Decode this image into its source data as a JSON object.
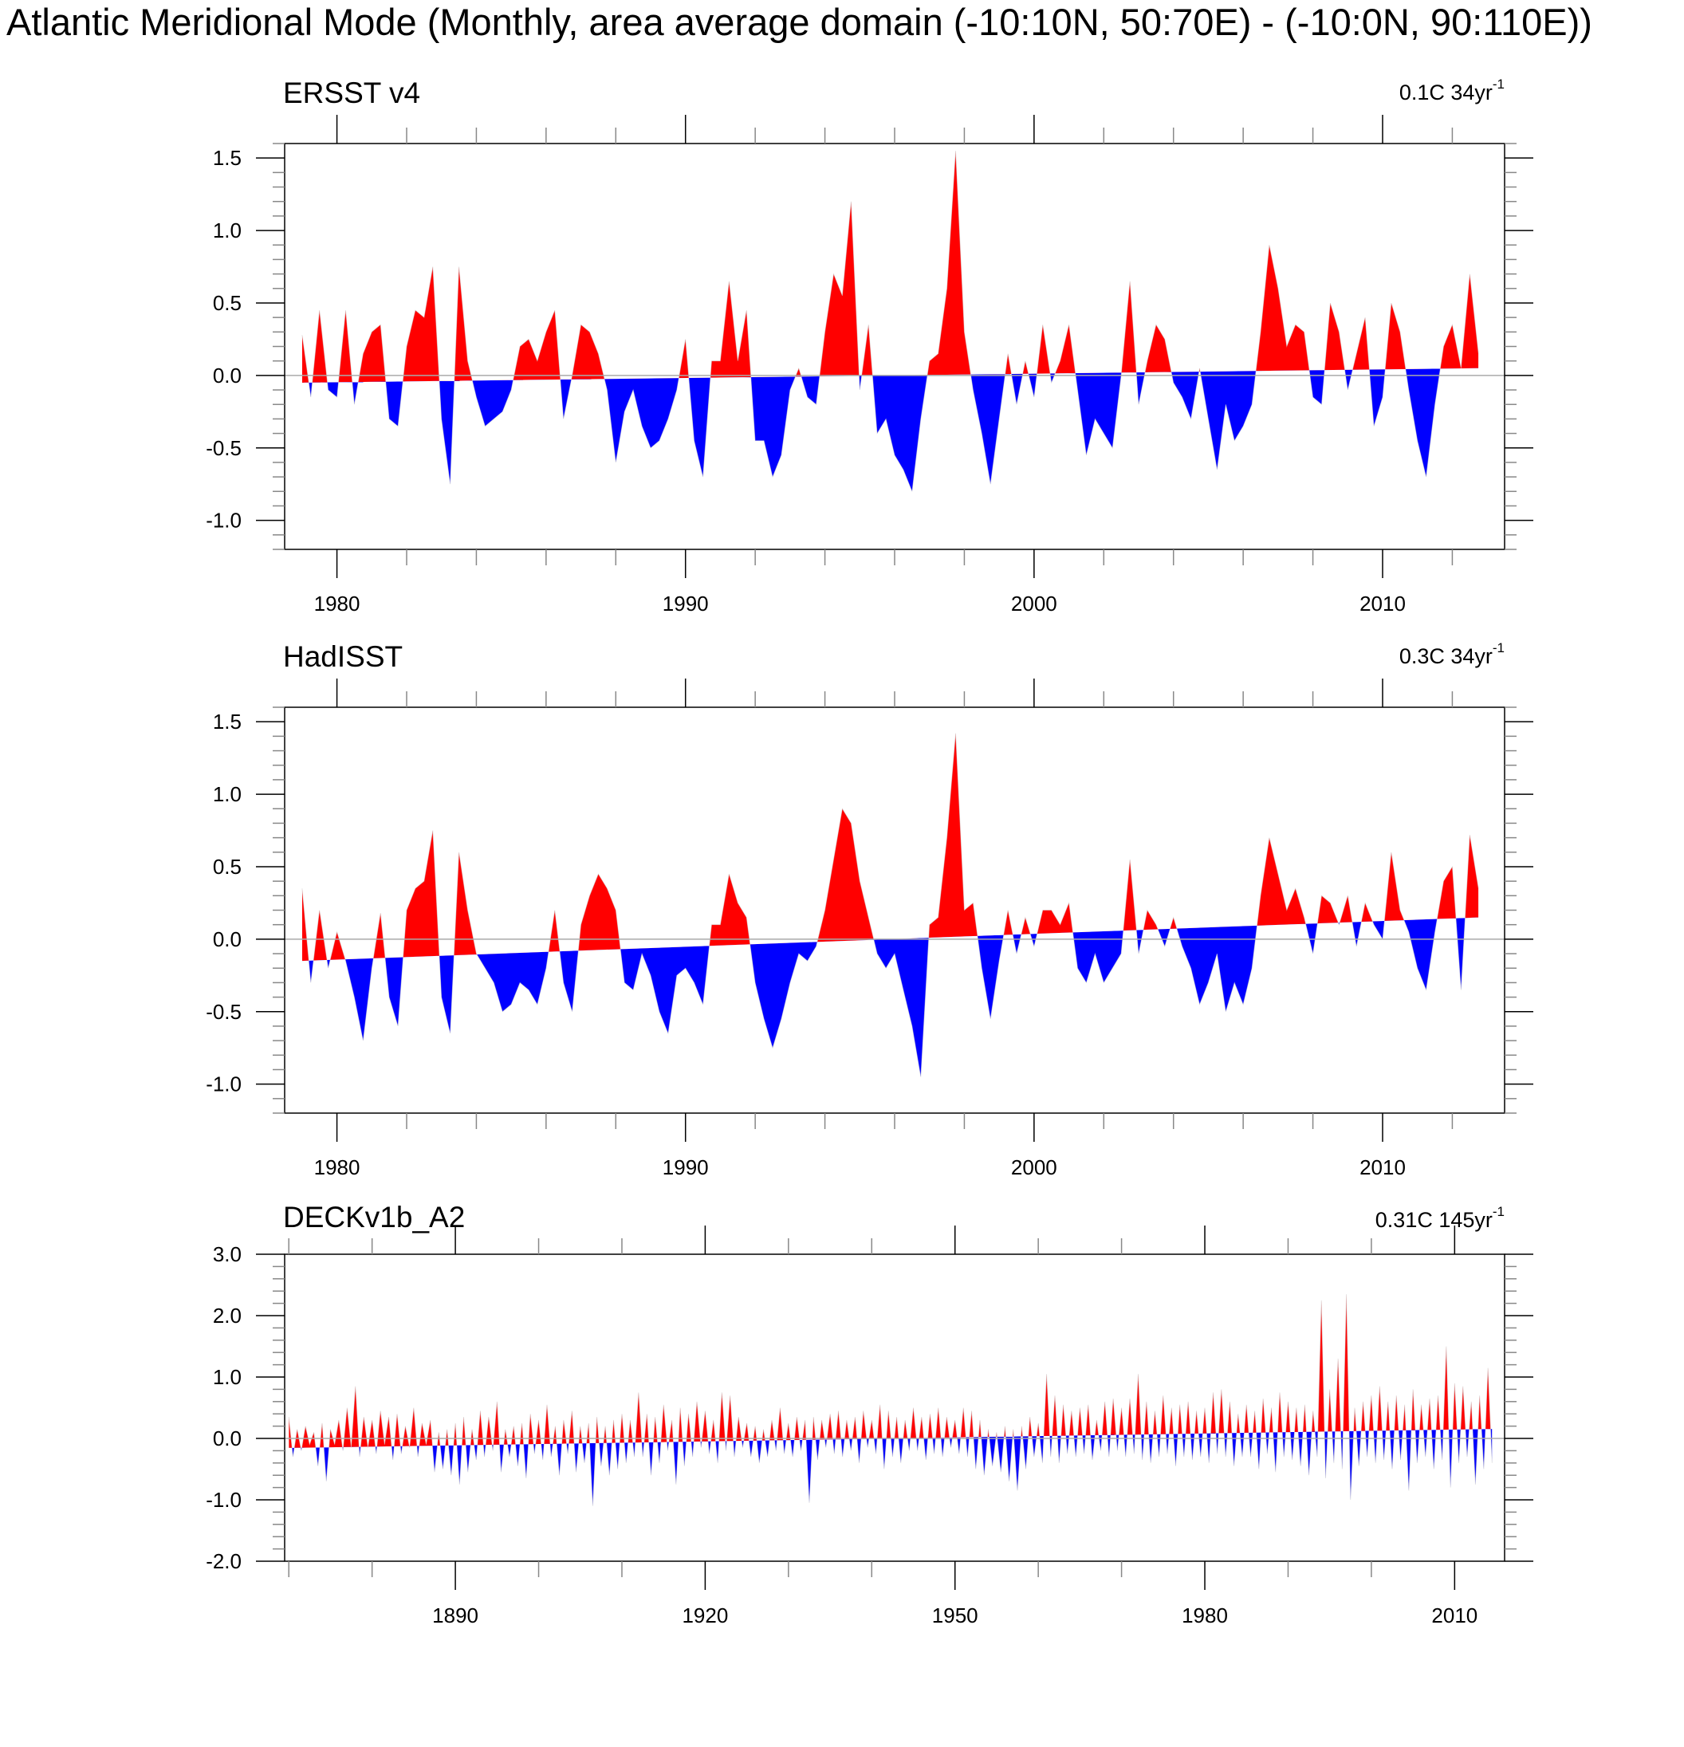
{
  "title": "Atlantic Meridional Mode (Monthly, area average domain (-10:10N, 50:70E) - (-10:0N, 90:110E))",
  "colors": {
    "positive": "#ff0000",
    "negative": "#0000ff",
    "zero_line": "#aaaaaa"
  },
  "chart_data": [
    {
      "type": "area",
      "title": "ERSST v4",
      "trend_label": {
        "value": "0.1C 34yr",
        "exponent": "-1"
      },
      "xlim": [
        1978.5,
        2013.5
      ],
      "ylim": [
        -1.2,
        1.6
      ],
      "trend": [
        -0.05,
        0.05
      ],
      "xticks": [
        1980,
        1990,
        2000,
        2010
      ],
      "xticklabels": [
        "1980",
        "1990",
        "2000",
        "2010"
      ],
      "yticks": [
        -1.0,
        -0.5,
        0.0,
        0.5,
        1.0,
        1.5
      ],
      "yticklabels": [
        "-1.0",
        "-0.5",
        "0.0",
        "0.5",
        "1.0",
        "1.5"
      ],
      "x_start": 1979.0,
      "x_step": 0.25,
      "values": [
        0.28,
        -0.15,
        0.45,
        -0.1,
        -0.15,
        0.45,
        -0.2,
        0.15,
        0.3,
        0.35,
        -0.3,
        -0.35,
        0.2,
        0.45,
        0.4,
        0.75,
        -0.3,
        -0.75,
        0.75,
        0.1,
        -0.15,
        -0.35,
        -0.3,
        -0.25,
        -0.1,
        0.2,
        0.25,
        0.1,
        0.3,
        0.45,
        -0.3,
        0.0,
        0.35,
        0.3,
        0.15,
        -0.1,
        -0.6,
        -0.25,
        -0.1,
        -0.35,
        -0.5,
        -0.45,
        -0.3,
        -0.1,
        0.25,
        -0.45,
        -0.7,
        0.1,
        0.1,
        0.65,
        0.1,
        0.45,
        -0.45,
        -0.45,
        -0.7,
        -0.55,
        -0.1,
        0.05,
        -0.15,
        -0.2,
        0.3,
        0.7,
        0.55,
        1.2,
        -0.1,
        0.35,
        -0.4,
        -0.3,
        -0.55,
        -0.65,
        -0.8,
        -0.3,
        0.1,
        0.15,
        0.6,
        1.55,
        0.3,
        -0.1,
        -0.4,
        -0.75,
        -0.3,
        0.15,
        -0.2,
        0.1,
        -0.15,
        0.35,
        -0.05,
        0.1,
        0.35,
        -0.1,
        -0.55,
        -0.3,
        -0.4,
        -0.5,
        0.0,
        0.65,
        -0.2,
        0.1,
        0.35,
        0.25,
        -0.05,
        -0.15,
        -0.3,
        0.05,
        -0.3,
        -0.65,
        -0.2,
        -0.45,
        -0.35,
        -0.2,
        0.3,
        0.9,
        0.6,
        0.2,
        0.35,
        0.3,
        -0.15,
        -0.2,
        0.5,
        0.3,
        -0.1,
        0.15,
        0.4,
        -0.35,
        -0.15,
        0.5,
        0.3,
        -0.1,
        -0.45,
        -0.7,
        -0.2,
        0.2,
        0.35,
        0.05,
        0.7,
        0.15
      ]
    },
    {
      "type": "area",
      "title": "HadISST",
      "trend_label": {
        "value": "0.3C 34yr",
        "exponent": "-1"
      },
      "xlim": [
        1978.5,
        2013.5
      ],
      "ylim": [
        -1.2,
        1.6
      ],
      "trend": [
        -0.15,
        0.15
      ],
      "xticks": [
        1980,
        1990,
        2000,
        2010
      ],
      "xticklabels": [
        "1980",
        "1990",
        "2000",
        "2010"
      ],
      "yticks": [
        -1.0,
        -0.5,
        0.0,
        0.5,
        1.0,
        1.5
      ],
      "yticklabels": [
        "-1.0",
        "-0.5",
        "0.0",
        "0.5",
        "1.0",
        "1.5"
      ],
      "x_start": 1979.0,
      "x_step": 0.25,
      "values": [
        0.35,
        -0.3,
        0.2,
        -0.2,
        0.05,
        -0.15,
        -0.4,
        -0.7,
        -0.2,
        0.18,
        -0.4,
        -0.6,
        0.2,
        0.35,
        0.4,
        0.75,
        -0.4,
        -0.65,
        0.6,
        0.2,
        -0.1,
        -0.2,
        -0.3,
        -0.5,
        -0.45,
        -0.3,
        -0.35,
        -0.45,
        -0.2,
        0.2,
        -0.3,
        -0.5,
        0.1,
        0.3,
        0.45,
        0.35,
        0.2,
        -0.3,
        -0.35,
        -0.1,
        -0.25,
        -0.5,
        -0.65,
        -0.25,
        -0.2,
        -0.3,
        -0.45,
        0.1,
        0.1,
        0.45,
        0.25,
        0.15,
        -0.3,
        -0.55,
        -0.75,
        -0.55,
        -0.3,
        -0.1,
        -0.15,
        -0.05,
        0.2,
        0.55,
        0.9,
        0.8,
        0.4,
        0.15,
        -0.1,
        -0.2,
        -0.1,
        -0.35,
        -0.6,
        -0.95,
        0.1,
        0.15,
        0.7,
        1.42,
        0.2,
        0.25,
        -0.2,
        -0.55,
        -0.15,
        0.2,
        -0.1,
        0.15,
        -0.05,
        0.2,
        0.2,
        0.1,
        0.25,
        -0.2,
        -0.3,
        -0.1,
        -0.3,
        -0.2,
        -0.1,
        0.55,
        -0.1,
        0.2,
        0.1,
        -0.05,
        0.15,
        -0.05,
        -0.2,
        -0.45,
        -0.3,
        -0.1,
        -0.5,
        -0.3,
        -0.45,
        -0.2,
        0.3,
        0.7,
        0.45,
        0.2,
        0.35,
        0.15,
        -0.1,
        0.3,
        0.25,
        0.1,
        0.3,
        -0.05,
        0.25,
        0.1,
        0.0,
        0.6,
        0.2,
        0.05,
        -0.2,
        -0.35,
        0.05,
        0.4,
        0.5,
        -0.35,
        0.72,
        0.35
      ]
    },
    {
      "type": "area",
      "title": "DECKv1b_A2",
      "trend_label": {
        "value": "0.31C 145yr",
        "exponent": "-1"
      },
      "xlim": [
        1869.5,
        2016.0
      ],
      "ylim": [
        -2.0,
        3.0
      ],
      "trend": [
        -0.155,
        0.155
      ],
      "xticks": [
        1890,
        1920,
        1950,
        1980,
        2010
      ],
      "xticklabels": [
        "1890",
        "1920",
        "1950",
        "1980",
        "2010"
      ],
      "yticks": [
        -2.0,
        -1.0,
        0.0,
        1.0,
        2.0,
        3.0
      ],
      "yticklabels": [
        "-2.0",
        "-1.0",
        "0.0",
        "1.0",
        "2.0",
        "3.0"
      ],
      "x_start": 1870.0,
      "x_step": 0.5,
      "values": [
        0.35,
        -0.3,
        0.15,
        -0.2,
        0.2,
        -0.1,
        0.1,
        -0.45,
        0.25,
        -0.7,
        0.15,
        -0.1,
        0.3,
        -0.2,
        0.5,
        -0.15,
        0.85,
        -0.3,
        0.35,
        -0.15,
        0.3,
        -0.25,
        0.45,
        -0.1,
        0.35,
        -0.35,
        0.4,
        -0.25,
        0.2,
        -0.15,
        0.5,
        -0.3,
        0.25,
        -0.1,
        0.3,
        -0.55,
        0.1,
        -0.5,
        0.15,
        -0.6,
        0.25,
        -0.75,
        0.35,
        -0.55,
        0.15,
        -0.35,
        0.45,
        -0.3,
        0.35,
        -0.2,
        0.6,
        -0.55,
        0.15,
        -0.3,
        0.2,
        -0.45,
        0.25,
        -0.65,
        0.4,
        -0.25,
        0.3,
        -0.35,
        0.55,
        -0.3,
        0.2,
        -0.6,
        0.3,
        -0.25,
        0.45,
        -0.55,
        0.2,
        -0.4,
        0.25,
        -1.1,
        0.35,
        -0.45,
        0.2,
        -0.6,
        0.3,
        -0.5,
        0.4,
        -0.4,
        0.3,
        -0.3,
        0.75,
        -0.3,
        0.4,
        -0.6,
        0.35,
        -0.4,
        0.55,
        -0.2,
        0.3,
        -0.75,
        0.5,
        -0.45,
        0.4,
        -0.3,
        0.6,
        -0.15,
        0.45,
        -0.25,
        0.3,
        -0.4,
        0.75,
        -0.2,
        0.7,
        -0.3,
        0.35,
        -0.15,
        0.25,
        -0.3,
        0.2,
        -0.4,
        0.15,
        -0.3,
        0.3,
        -0.2,
        0.5,
        -0.25,
        0.25,
        -0.3,
        0.35,
        -0.2,
        0.3,
        -1.05,
        0.35,
        -0.35,
        0.3,
        -0.15,
        0.4,
        -0.25,
        0.45,
        -0.3,
        0.3,
        -0.2,
        0.35,
        -0.4,
        0.45,
        -0.15,
        0.3,
        -0.25,
        0.55,
        -0.5,
        0.45,
        -0.3,
        0.35,
        -0.4,
        0.3,
        -0.2,
        0.5,
        -0.2,
        0.35,
        -0.35,
        0.4,
        -0.25,
        0.5,
        -0.3,
        0.35,
        -0.15,
        0.3,
        -0.25,
        0.5,
        -0.3,
        0.45,
        -0.5,
        0.3,
        -0.6,
        0.15,
        -0.45,
        0.1,
        -0.55,
        0.2,
        -0.7,
        0.15,
        -0.85,
        0.2,
        -0.5,
        0.35,
        -0.3,
        0.25,
        -0.4,
        1.05,
        -0.3,
        0.7,
        -0.4,
        0.55,
        -0.25,
        0.45,
        -0.3,
        0.5,
        -0.25,
        0.55,
        -0.35,
        0.3,
        -0.2,
        0.6,
        -0.3,
        0.65,
        -0.2,
        0.5,
        -0.3,
        0.65,
        -0.25,
        1.05,
        -0.35,
        0.6,
        -0.4,
        0.45,
        -0.3,
        0.7,
        -0.25,
        0.5,
        -0.45,
        0.55,
        -0.3,
        0.6,
        -0.35,
        0.45,
        -0.3,
        0.5,
        -0.4,
        0.75,
        -0.25,
        0.8,
        -0.3,
        0.6,
        -0.45,
        0.4,
        -0.3,
        0.55,
        -0.3,
        0.45,
        -0.5,
        0.65,
        -0.25,
        0.5,
        -0.55,
        0.75,
        -0.3,
        0.6,
        -0.35,
        0.5,
        -0.45,
        0.55,
        -0.6,
        0.45,
        -0.3,
        2.25,
        -0.65,
        0.8,
        -0.4,
        1.3,
        -0.5,
        2.35,
        -1.0,
        0.5,
        -0.45,
        0.6,
        -0.3,
        0.7,
        -0.4,
        0.85,
        -0.35,
        0.6,
        -0.5,
        0.7,
        -0.35,
        0.55,
        -0.85,
        0.8,
        -0.4,
        0.55,
        -0.3,
        0.65,
        -0.5,
        0.7,
        -0.35,
        1.5,
        -0.8,
        0.9,
        -0.4,
        0.85,
        -0.3,
        0.6,
        -0.75,
        0.7,
        -0.5,
        1.15,
        -0.4
      ]
    }
  ]
}
